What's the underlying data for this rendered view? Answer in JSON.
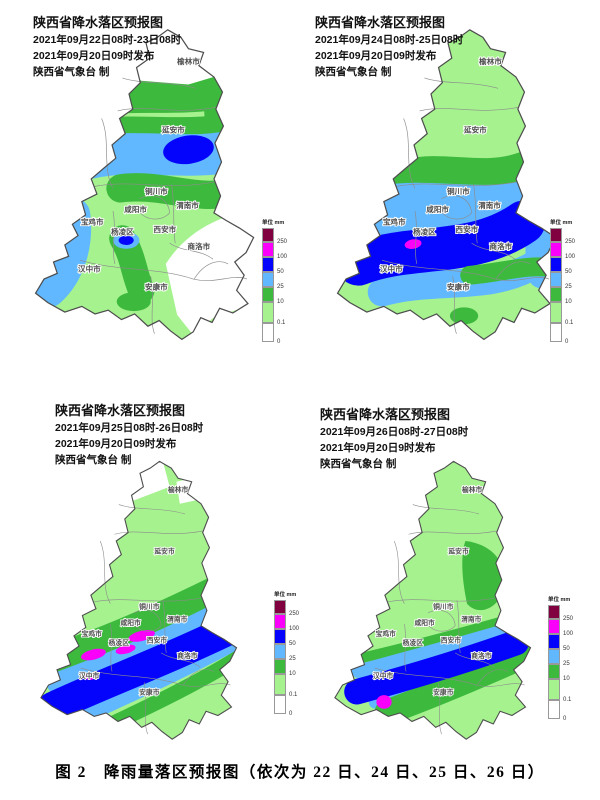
{
  "legend": {
    "header": "单位 mm",
    "levels": [
      {
        "value": "250",
        "color": "#800040"
      },
      {
        "value": "100",
        "color": "#fa00fa"
      },
      {
        "value": "50",
        "color": "#0404fc"
      },
      {
        "value": "25",
        "color": "#61b8ff"
      },
      {
        "value": "10",
        "color": "#3dba3d"
      },
      {
        "value": "0.1",
        "color": "#a6f28f"
      },
      {
        "value": "0",
        "color": "#ffffff"
      }
    ]
  },
  "cities": [
    "榆林市",
    "延安市",
    "铜川市",
    "渭南市",
    "咸阳市",
    "宝鸡市",
    "杨凌区",
    "西安市",
    "商洛市",
    "汉中市",
    "安康市"
  ],
  "maps": [
    {
      "title": "陕西省降水落区预报图",
      "period": "2021年09月22日08时-23日08时",
      "issued": "2021年09月20日09时发布",
      "agency": "陕西省气象台 制"
    },
    {
      "title": "陕西省降水落区预报图",
      "period": "2021年09月24日08时-25日08时",
      "issued": "2021年09月20日09时发布",
      "agency": "陕西省气象台 制"
    },
    {
      "title": "陕西省降水落区预报图",
      "period": "2021年09月25日08时-26日08时",
      "issued": "2021年09月20日09时发布",
      "agency": "陕西省气象台 制"
    },
    {
      "title": "陕西省降水落区预报图",
      "period": "2021年09月26日08时-27日08时",
      "issued": "2021年09月20日9时发布",
      "agency": "陕西省气象台 制"
    }
  ],
  "caption": "图 2　降雨量落区预报图（依次为 22 日、24 日、25 日、26 日）"
}
